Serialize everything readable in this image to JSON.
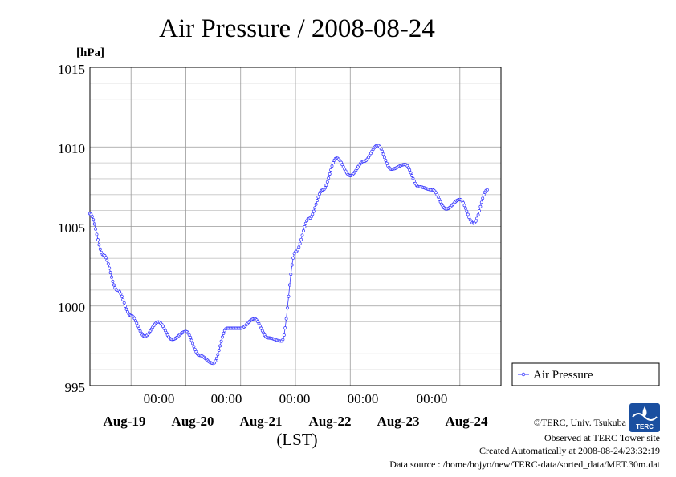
{
  "chart_data": {
    "type": "line",
    "title": "Air Pressure / 2008-08-24",
    "unit_label": "[hPa]",
    "xlabel": "(LST)",
    "ylim": [
      995,
      1015
    ],
    "yticks": [
      "1015",
      "1010",
      "1005",
      "1000",
      "995"
    ],
    "x_time_labels": [
      "00:00",
      "00:00",
      "00:00",
      "00:00",
      "00:00"
    ],
    "x_date_labels": [
      "Aug-19",
      "Aug-20",
      "Aug-21",
      "Aug-22",
      "Aug-23",
      "Aug-24"
    ],
    "grid": true,
    "legend_position": "right",
    "series": [
      {
        "name": "Air Pressure",
        "color": "#3333ff",
        "x_hours": [
          0,
          6,
          12,
          18,
          24,
          30,
          36,
          42,
          48,
          54,
          60,
          66,
          72,
          78,
          84,
          90,
          96,
          102,
          108,
          114,
          120,
          126,
          132,
          138,
          144,
          150,
          156,
          162,
          168,
          174
        ],
        "values": [
          1005.8,
          1003.2,
          1001.0,
          999.4,
          998.1,
          999.0,
          997.9,
          998.4,
          996.9,
          996.4,
          998.6,
          998.6,
          999.2,
          998.0,
          997.8,
          1003.4,
          1005.5,
          1007.3,
          1009.3,
          1008.2,
          1009.1,
          1010.1,
          1008.6,
          1008.9,
          1007.5,
          1007.3,
          1006.1,
          1006.7,
          1005.2,
          1007.3
        ],
        "marker": "open-circle"
      }
    ],
    "legend": [
      {
        "label": "Air Pressure",
        "color": "#3333ff"
      }
    ]
  },
  "credits": {
    "copyright": "©TERC, Univ. Tsukuba",
    "observed": "Observed at TERC Tower site",
    "created": "Created Automatically at 2008-08-24/23:32:19",
    "source": "Data source : /home/hojyo/new/TERC-data/sorted_data/MET.30m.dat",
    "logo_text": "TERC"
  }
}
